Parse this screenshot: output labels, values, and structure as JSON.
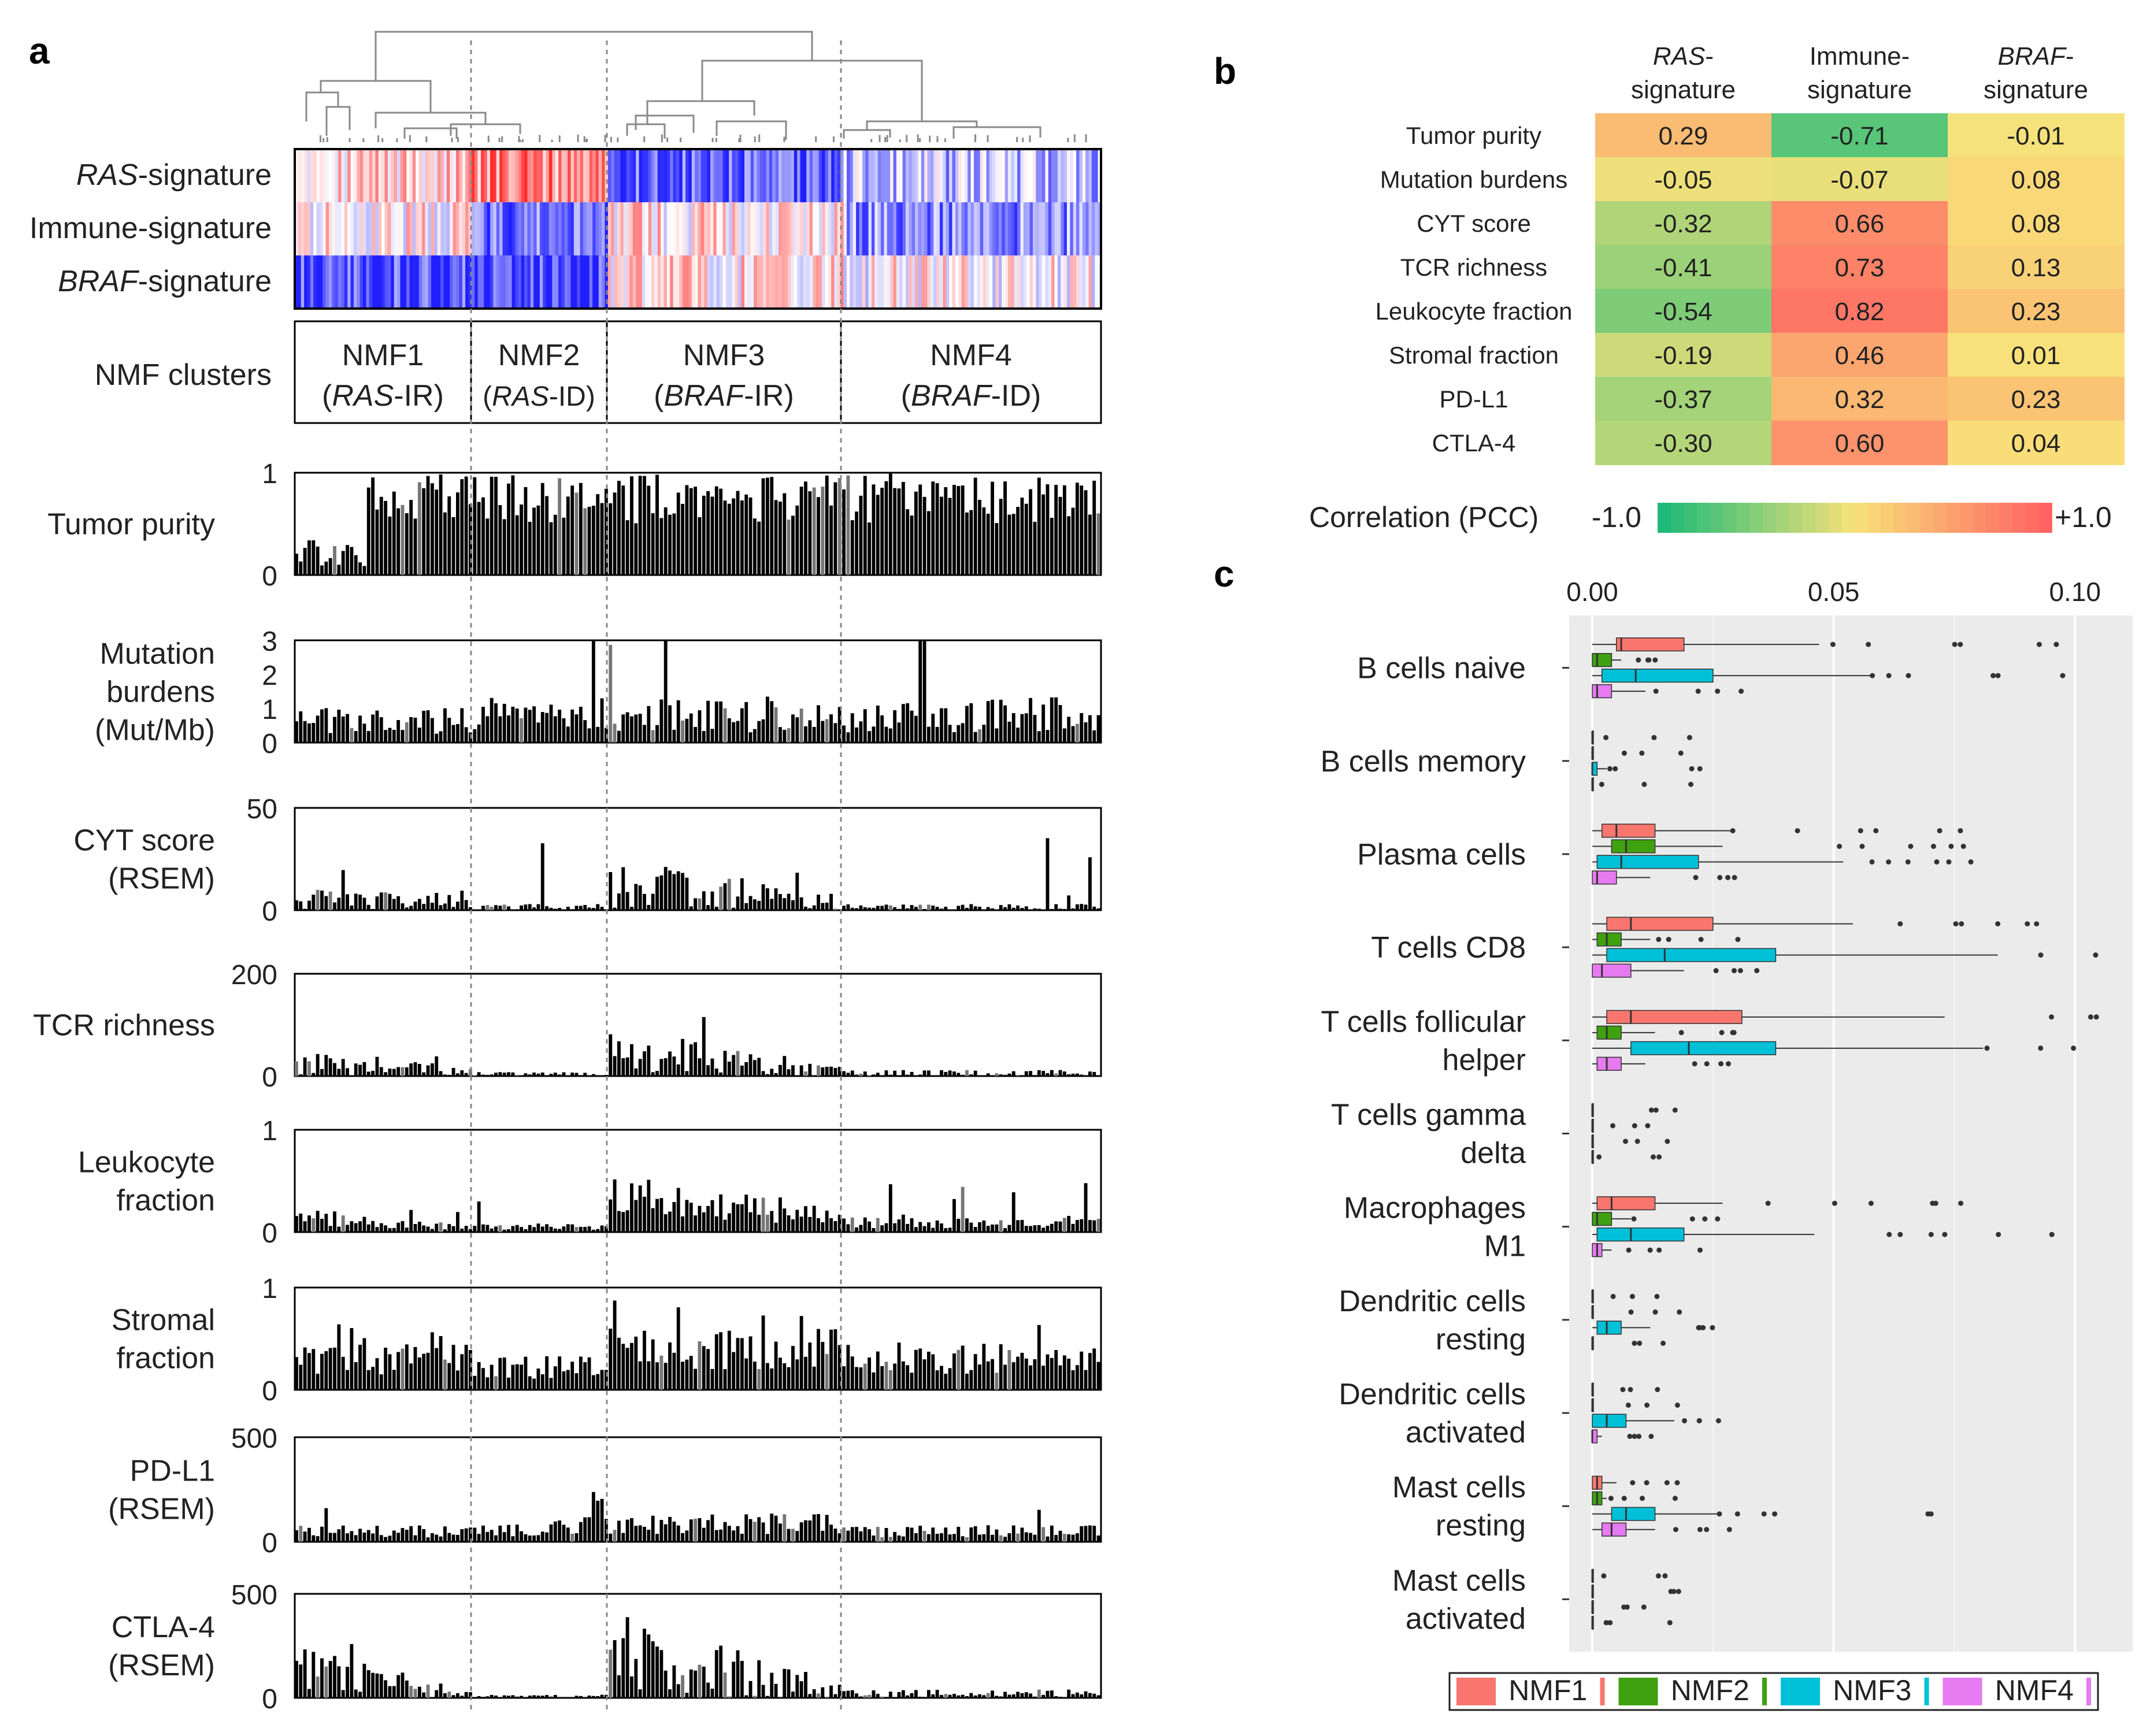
{
  "panels": {
    "a": "a",
    "b": "b",
    "c": "c"
  },
  "panel_a": {
    "signature_rows": [
      {
        "italic": "RAS",
        "rest": "-signature"
      },
      {
        "italic": "",
        "rest": "Immune-signature"
      },
      {
        "italic": "BRAF",
        "rest": "-signature"
      }
    ],
    "cluster_row_label": "NMF clusters",
    "clusters": [
      {
        "name": "NMF1",
        "sub_italic": "RAS",
        "sub_rest": "-IR"
      },
      {
        "name": "NMF2",
        "sub_italic": "RAS",
        "sub_rest": "-ID"
      },
      {
        "name": "NMF3",
        "sub_italic": "BRAF",
        "sub_rest": "-IR"
      },
      {
        "name": "NMF4",
        "sub_italic": "BRAF",
        "sub_rest": "-ID"
      }
    ]
  },
  "chart_data": [
    {
      "id": "heatmap-a",
      "type": "heatmap",
      "title": "",
      "rows": [
        "RAS-signature",
        "Immune-signature",
        "BRAF-signature"
      ],
      "columns": [
        "NMF1",
        "NMF2",
        "NMF3",
        "NMF4"
      ],
      "values": [
        [
          0.25,
          0.55,
          -0.75,
          -0.3
        ],
        [
          0.1,
          -0.65,
          0.15,
          -0.5
        ],
        [
          -0.8,
          -0.85,
          0.15,
          0.05
        ]
      ],
      "colors": {
        "low": "#1f1fff",
        "mid": "#ffffff",
        "high": "#ff2a2a"
      }
    },
    {
      "id": "bars-a",
      "type": "bar",
      "categories": [
        "NMF1",
        "NMF2",
        "NMF3",
        "NMF4"
      ],
      "series": [
        {
          "name": "Tumor purity",
          "ylabel": [
            "Tumor purity"
          ],
          "ylim": [
            0,
            1
          ],
          "ticks": [
            "1",
            "0"
          ],
          "values": [
            0.5,
            0.9,
            0.65,
            0.85
          ]
        },
        {
          "name": "Mutation burdens",
          "ylabel": [
            "Mutation",
            "burdens",
            "(Mut/Mb)"
          ],
          "ylim": [
            0,
            3
          ],
          "ticks": [
            "3",
            "2",
            "1",
            "0"
          ],
          "values": [
            0.4,
            0.6,
            0.6,
            0.6
          ]
        },
        {
          "name": "CYT score",
          "ylabel": [
            "CYT score",
            "(RSEM)"
          ],
          "ylim": [
            0,
            50
          ],
          "ticks": [
            "50",
            "0"
          ],
          "values": [
            8,
            2,
            13,
            3
          ]
        },
        {
          "name": "TCR richness",
          "ylabel": [
            "TCR richness"
          ],
          "ylim": [
            0,
            200
          ],
          "ticks": [
            "200",
            "0"
          ],
          "values": [
            20,
            4,
            35,
            6
          ]
        },
        {
          "name": "Leukocyte fraction",
          "ylabel": [
            "Leukocyte",
            "fraction"
          ],
          "ylim": [
            0,
            1
          ],
          "ticks": [
            "1",
            "0"
          ],
          "values": [
            0.12,
            0.06,
            0.3,
            0.1
          ]
        },
        {
          "name": "Stromal fraction",
          "ylabel": [
            "Stromal",
            "fraction"
          ],
          "ylim": [
            0,
            1
          ],
          "ticks": [
            "1",
            "0"
          ],
          "values": [
            0.35,
            0.25,
            0.42,
            0.3
          ]
        },
        {
          "name": "PD-L1",
          "ylabel": [
            "PD-L1",
            "(RSEM)"
          ],
          "ylim": [
            0,
            500
          ],
          "ticks": [
            "500",
            "0"
          ],
          "values": [
            60,
            70,
            90,
            55
          ]
        },
        {
          "name": "CTLA-4",
          "ylabel": [
            "CTLA-4",
            "(RSEM)"
          ],
          "ylim": [
            0,
            500
          ],
          "ticks": [
            "500",
            "0"
          ],
          "values": [
            80,
            10,
            140,
            25
          ]
        }
      ]
    },
    {
      "id": "corr-b",
      "type": "heatmap",
      "title": "",
      "columns": [
        {
          "italic": "RAS",
          "line1_rest": "-",
          "line2": "signature"
        },
        {
          "italic": "",
          "line1_rest": "Immune-",
          "line2": "signature"
        },
        {
          "italic": "BRAF",
          "line1_rest": "-",
          "line2": "signature"
        }
      ],
      "rows": [
        "Tumor purity",
        "Mutation burdens",
        "CYT score",
        "TCR richness",
        "Leukocyte fraction",
        "Stromal fraction",
        "PD-L1",
        "CTLA-4"
      ],
      "values": [
        [
          0.29,
          -0.71,
          -0.01
        ],
        [
          -0.05,
          -0.07,
          0.08
        ],
        [
          -0.32,
          0.66,
          0.08
        ],
        [
          -0.41,
          0.73,
          0.13
        ],
        [
          -0.54,
          0.82,
          0.23
        ],
        [
          -0.19,
          0.46,
          0.01
        ],
        [
          -0.37,
          0.32,
          0.23
        ],
        [
          -0.3,
          0.6,
          0.04
        ]
      ],
      "labels": [
        [
          "0.29",
          "-0.71",
          "-0.01"
        ],
        [
          "-0.05",
          "-0.07",
          "0.08"
        ],
        [
          "-0.32",
          "0.66",
          "0.08"
        ],
        [
          "-0.41",
          "0.73",
          "0.13"
        ],
        [
          "-0.54",
          "0.82",
          "0.23"
        ],
        [
          "-0.19",
          "0.46",
          "0.01"
        ],
        [
          "-0.37",
          "0.32",
          "0.23"
        ],
        [
          "-0.30",
          "0.60",
          "0.04"
        ]
      ],
      "scale": {
        "label": "Correlation (PCC)",
        "min_label": "-1.0",
        "max_label": "+1.0",
        "range": [
          -1,
          1
        ],
        "low_color": "#16b977",
        "mid_color": "#f8e27a",
        "high_color": "#ff5f62"
      }
    },
    {
      "id": "boxplot-c",
      "type": "box",
      "title": "",
      "xlim": [
        0,
        0.105
      ],
      "xticks": [
        0,
        0.05,
        0.1
      ],
      "xtick_labels": [
        "0.00",
        "0.05",
        "0.10"
      ],
      "groups": [
        {
          "name": "NMF1",
          "color": "#f8766d"
        },
        {
          "name": "NMF2",
          "color": "#3fa10f"
        },
        {
          "name": "NMF3",
          "color": "#00c0d8"
        },
        {
          "name": "NMF4",
          "color": "#e67af0"
        }
      ],
      "categories": [
        {
          "label": [
            "B cells naive"
          ],
          "boxes": [
            [
              0,
              0.005,
              0.006,
              0.019,
              0.047
            ],
            [
              0,
              0,
              0.001,
              0.004,
              0.006
            ],
            [
              0,
              0.002,
              0.009,
              0.025,
              0.058
            ],
            [
              0,
              0,
              0.001,
              0.004,
              0.011
            ]
          ]
        },
        {
          "label": [
            "B cells memory"
          ],
          "boxes": [
            [
              0,
              0,
              0,
              0,
              0
            ],
            [
              0,
              0,
              0,
              0,
              0
            ],
            [
              0,
              0,
              0,
              0.001,
              0.003
            ],
            [
              0,
              0,
              0,
              0,
              0
            ]
          ]
        },
        {
          "label": [
            "Plasma cells"
          ],
          "boxes": [
            [
              0,
              0.002,
              0.005,
              0.013,
              0.029
            ],
            [
              0,
              0.004,
              0.007,
              0.013,
              0.027
            ],
            [
              0,
              0.001,
              0.006,
              0.022,
              0.052
            ],
            [
              0,
              0,
              0.001,
              0.005,
              0.012
            ]
          ]
        },
        {
          "label": [
            "T cells CD8"
          ],
          "boxes": [
            [
              0,
              0.003,
              0.008,
              0.025,
              0.054
            ],
            [
              0,
              0.001,
              0.003,
              0.006,
              0.012
            ],
            [
              0,
              0.003,
              0.015,
              0.038,
              0.084
            ],
            [
              0,
              0,
              0.002,
              0.008,
              0.019
            ]
          ]
        },
        {
          "label": [
            "T cells follicular",
            "helper"
          ],
          "boxes": [
            [
              0,
              0.003,
              0.008,
              0.031,
              0.073
            ],
            [
              0,
              0.001,
              0.003,
              0.006,
              0.013
            ],
            [
              0,
              0.008,
              0.02,
              0.038,
              0.081
            ],
            [
              0,
              0.001,
              0.003,
              0.006,
              0.011
            ]
          ]
        },
        {
          "label": [
            "T cells gamma",
            "delta"
          ],
          "boxes": [
            [
              0,
              0,
              0,
              0,
              0
            ],
            [
              0,
              0,
              0,
              0,
              0
            ],
            [
              0,
              0,
              0,
              0,
              0
            ],
            [
              0,
              0,
              0,
              0,
              0
            ]
          ]
        },
        {
          "label": [
            "Macrophages",
            "M1"
          ],
          "boxes": [
            [
              0,
              0.001,
              0.004,
              0.013,
              0.027
            ],
            [
              0,
              0,
              0.001,
              0.004,
              0.008
            ],
            [
              0,
              0.001,
              0.008,
              0.019,
              0.046
            ],
            [
              0,
              0,
              0.001,
              0.002,
              0.004
            ]
          ]
        },
        {
          "label": [
            "Dendritic cells",
            "resting"
          ],
          "boxes": [
            [
              0,
              0,
              0,
              0,
              0
            ],
            [
              0,
              0,
              0,
              0,
              0
            ],
            [
              0,
              0.001,
              0.003,
              0.006,
              0.012
            ],
            [
              0,
              0,
              0,
              0,
              0
            ]
          ]
        },
        {
          "label": [
            "Dendritic cells",
            "activated"
          ],
          "boxes": [
            [
              0,
              0,
              0,
              0,
              0
            ],
            [
              0,
              0,
              0,
              0,
              0
            ],
            [
              0,
              0,
              0.003,
              0.007,
              0.017
            ],
            [
              0,
              0,
              0,
              0.001,
              0.002
            ]
          ]
        },
        {
          "label": [
            "Mast cells",
            "resting"
          ],
          "boxes": [
            [
              0,
              0,
              0.001,
              0.002,
              0.005
            ],
            [
              0,
              0,
              0.001,
              0.002,
              0.003
            ],
            [
              0,
              0.004,
              0.007,
              0.013,
              0.026
            ],
            [
              0,
              0.002,
              0.004,
              0.007,
              0.013
            ]
          ]
        },
        {
          "label": [
            "Mast cells",
            "activated"
          ],
          "boxes": [
            [
              0,
              0,
              0,
              0,
              0
            ],
            [
              0,
              0,
              0,
              0,
              0
            ],
            [
              0,
              0,
              0,
              0,
              0
            ],
            [
              0,
              0,
              0,
              0,
              0
            ]
          ]
        }
      ]
    }
  ]
}
